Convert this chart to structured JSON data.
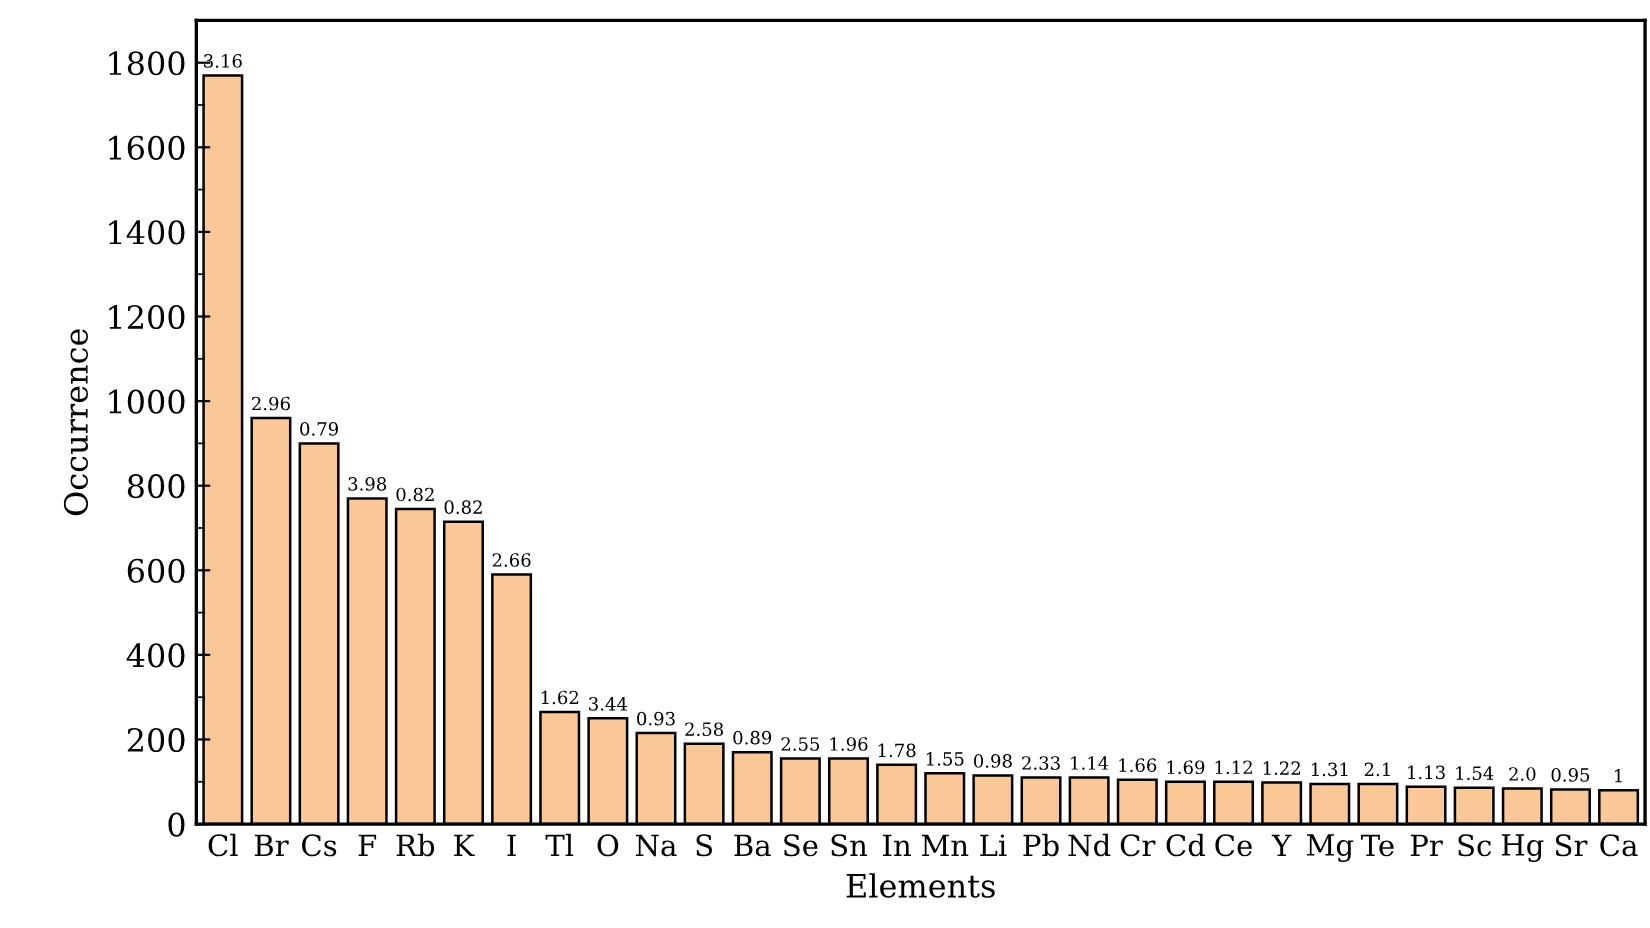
{
  "chart_data": {
    "type": "bar",
    "xlabel": "Elements",
    "ylabel": "Occurrence",
    "categories": [
      "Cl",
      "Br",
      "Cs",
      "F",
      "Rb",
      "K",
      "I",
      "Tl",
      "O",
      "Na",
      "S",
      "Ba",
      "Se",
      "Sn",
      "In",
      "Mn",
      "Li",
      "Pb",
      "Nd",
      "Cr",
      "Cd",
      "Ce",
      "Y",
      "Mg",
      "Te",
      "Pr",
      "Sc",
      "Hg",
      "Sr",
      "Ca"
    ],
    "values": [
      1770,
      960,
      900,
      770,
      745,
      715,
      590,
      265,
      250,
      215,
      190,
      170,
      155,
      155,
      140,
      120,
      115,
      110,
      110,
      105,
      100,
      100,
      98,
      95,
      95,
      88,
      86,
      84,
      82,
      80
    ],
    "annotations": [
      {
        "text": "3.16",
        "x": "Cl",
        "y": 1770
      },
      {
        "text": "2.96",
        "x": "Br",
        "y": 960
      },
      {
        "text": "0.79",
        "x": "Cs",
        "y": 900
      },
      {
        "text": "3.98",
        "x": "F",
        "y": 770
      },
      {
        "text": "0.82",
        "x": "Rb",
        "y": 745
      },
      {
        "text": "0.82",
        "x": "K",
        "y": 715
      },
      {
        "text": "2.66",
        "x": "I",
        "y": 590
      },
      {
        "text": "1.62",
        "x": "Tl",
        "y": 265
      },
      {
        "text": "3.44",
        "x": "O",
        "y": 250
      },
      {
        "text": "0.93",
        "x": "Na",
        "y": 215
      },
      {
        "text": "2.58",
        "x": "S",
        "y": 190
      },
      {
        "text": "0.89",
        "x": "Ba",
        "y": 170
      },
      {
        "text": "2.55",
        "x": "Se",
        "y": 155
      },
      {
        "text": "1.96",
        "x": "Sn",
        "y": 155
      },
      {
        "text": "1.78",
        "x": "In",
        "y": 140
      },
      {
        "text": "1.55",
        "x": "Mn",
        "y": 120
      },
      {
        "text": "0.98",
        "x": "Li",
        "y": 115
      },
      {
        "text": "2.33",
        "x": "Pb",
        "y": 110
      },
      {
        "text": "1.14",
        "x": "Nd",
        "y": 110
      },
      {
        "text": "1.66",
        "x": "Cr",
        "y": 105
      },
      {
        "text": "1.69",
        "x": "Cd",
        "y": 100
      },
      {
        "text": "1.12",
        "x": "Ce",
        "y": 100
      },
      {
        "text": "1.22",
        "x": "Y",
        "y": 98
      },
      {
        "text": "1.31",
        "x": "Mg",
        "y": 95
      },
      {
        "text": "2.1",
        "x": "Te",
        "y": 95
      },
      {
        "text": "1.13",
        "x": "Pr",
        "y": 88
      },
      {
        "text": "1.54",
        "x": "Sc",
        "y": 86
      },
      {
        "text": "2.0",
        "x": "Hg",
        "y": 84
      },
      {
        "text": "0.95",
        "x": "Sr",
        "y": 82
      },
      {
        "text": "1",
        "x": "Ca",
        "y": 80
      }
    ],
    "color": "#f9c896",
    "ylim": [
      0,
      1900
    ],
    "yticks": [
      0,
      {
        "value": 100,
        "label": null
      },
      200,
      {
        "value": 300,
        "label": null
      },
      400,
      {
        "value": 500,
        "label": null
      },
      600,
      {
        "value": 700,
        "label": null
      },
      800,
      {
        "value": 900,
        "label": null
      },
      1000,
      {
        "value": 1100,
        "label": null
      },
      1200,
      {
        "value": 1300,
        "label": null
      },
      1400,
      {
        "value": 1500,
        "label": null
      },
      1600,
      {
        "value": 1700,
        "label": null
      },
      1800
    ],
    "grid": false,
    "legend": false
  }
}
